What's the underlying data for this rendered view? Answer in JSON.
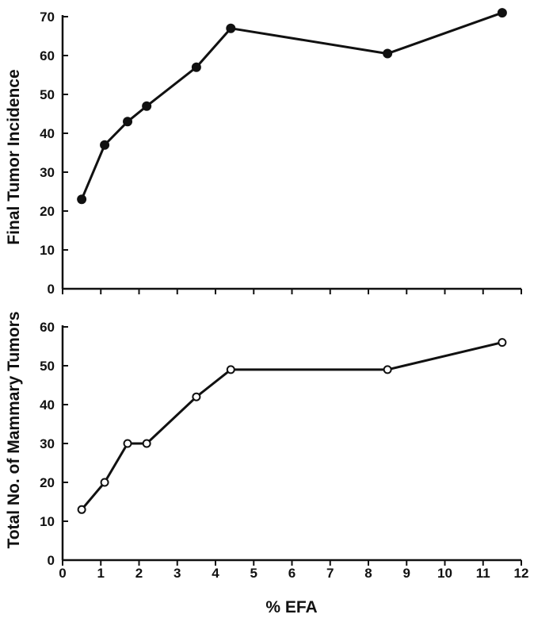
{
  "chart_data": [
    {
      "type": "line",
      "panel": "top",
      "ylabel": "Final Tumor Incidence",
      "xlabel": "",
      "ylim": [
        0,
        70
      ],
      "yticks": [
        0,
        10,
        20,
        30,
        40,
        50,
        60,
        70
      ],
      "xlim": [
        0,
        12
      ],
      "marker": "filled-circle",
      "series": [
        {
          "x": [
            0.5,
            1.1,
            1.7,
            2.2,
            3.5,
            4.4,
            8.5,
            11.5
          ],
          "y": [
            23,
            37,
            43,
            47,
            57,
            67,
            60.5,
            71
          ]
        }
      ]
    },
    {
      "type": "line",
      "panel": "bottom",
      "ylabel": "Total No. of Mammary Tumors",
      "xlabel": "% EFA",
      "ylim": [
        0,
        60
      ],
      "yticks": [
        0,
        10,
        20,
        30,
        40,
        50,
        60
      ],
      "xlim": [
        0,
        12
      ],
      "xticks": [
        0,
        1,
        2,
        3,
        4,
        5,
        6,
        7,
        8,
        9,
        10,
        11,
        12
      ],
      "marker": "open-circle",
      "series": [
        {
          "x": [
            0.5,
            1.1,
            1.7,
            2.2,
            3.5,
            4.4,
            8.5,
            11.5
          ],
          "y": [
            13,
            20,
            30,
            30,
            42,
            49,
            49,
            56
          ]
        }
      ]
    }
  ]
}
